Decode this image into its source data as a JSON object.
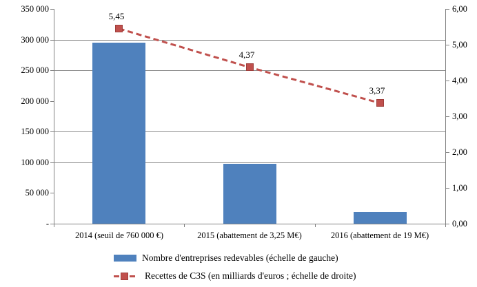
{
  "chart_data": {
    "type": "combo",
    "title": "",
    "categories": [
      "2014 (seuil de 760 000 €)",
      "2015  (abattement de 3,25 M€)",
      "2016 (abattement de 19 M€)"
    ],
    "series": [
      {
        "name": "Nombre d'entreprises redevables (échelle de gauche)",
        "type": "bar",
        "axis": "left",
        "values": [
          295000,
          98000,
          19000
        ]
      },
      {
        "name": "Recettes de C3S (en milliards d'euros ; échelle de droite)",
        "type": "line",
        "axis": "right",
        "line_style": "dashed",
        "marker": "square",
        "values": [
          5.45,
          4.37,
          3.37
        ],
        "data_labels": [
          "5,45",
          "4,37",
          "3,37"
        ]
      }
    ],
    "left_axis": {
      "min": 0,
      "max": 350000,
      "ticks": [
        {
          "value": 350000,
          "label": "350 000"
        },
        {
          "value": 300000,
          "label": "300 000"
        },
        {
          "value": 250000,
          "label": "250 000"
        },
        {
          "value": 200000,
          "label": "200 000"
        },
        {
          "value": 150000,
          "label": "150 000"
        },
        {
          "value": 100000,
          "label": "100 000"
        },
        {
          "value": 50000,
          "label": "50 000"
        },
        {
          "value": 0,
          "label": "-"
        }
      ]
    },
    "right_axis": {
      "min": 0,
      "max": 6,
      "ticks": [
        {
          "value": 6,
          "label": "6,00"
        },
        {
          "value": 5,
          "label": "5,00"
        },
        {
          "value": 4,
          "label": "4,00"
        },
        {
          "value": 3,
          "label": "3,00"
        },
        {
          "value": 2,
          "label": "2,00"
        },
        {
          "value": 1,
          "label": "1,00"
        },
        {
          "value": 0,
          "label": "0,00"
        }
      ]
    },
    "gridlines": {
      "axis": "left",
      "values": [
        300000,
        250000,
        150000,
        100000
      ]
    },
    "legend": [
      {
        "swatch": "bar",
        "label": "Nombre d'entreprises redevables (échelle de gauche)"
      },
      {
        "swatch": "dashed-line-marker",
        "label": "Recettes de C3S (en milliards d'euros ; échelle de droite)"
      }
    ],
    "colors": {
      "bar": "#4F81BD",
      "line": "#C0504D",
      "marker_border": "#9E3D3A",
      "grid": "#8C8C8C",
      "axis": "#808080",
      "text": "#000000"
    },
    "legend_position": "bottom"
  }
}
